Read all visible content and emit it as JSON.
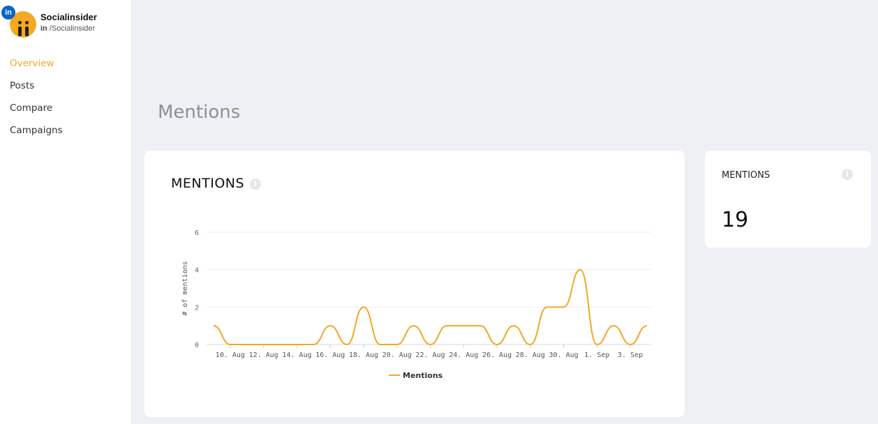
{
  "profile": {
    "name": "Socialinsider",
    "network_badge": "in",
    "handle_prefix": "in",
    "handle": "/Socialinsider"
  },
  "sidebar": {
    "items": [
      {
        "label": "Overview",
        "active": true
      },
      {
        "label": "Posts",
        "active": false
      },
      {
        "label": "Compare",
        "active": false
      },
      {
        "label": "Campaigns",
        "active": false
      }
    ]
  },
  "page": {
    "title": "Mentions"
  },
  "chart_card": {
    "title": "MENTIONS",
    "info_icon": "info-icon"
  },
  "stat_card": {
    "title": "MENTIONS",
    "value": "19",
    "info_icon": "info-icon"
  },
  "colors": {
    "accent": "#f5a623",
    "line": "#f5a623",
    "background": "#eef0f4"
  },
  "chart_data": {
    "type": "line",
    "title": "",
    "xlabel": "",
    "ylabel": "# of mentions",
    "ylim": [
      0,
      6
    ],
    "yticks": [
      0,
      2,
      4,
      6
    ],
    "x_tick_labels": [
      "10. Aug",
      "12. Aug",
      "14. Aug",
      "16. Aug",
      "18. Aug",
      "20. Aug",
      "22. Aug",
      "24. Aug",
      "26. Aug",
      "28. Aug",
      "30. Aug",
      "1. Sep",
      "3. Sep"
    ],
    "x": [
      "9. Aug",
      "10. Aug",
      "11. Aug",
      "12. Aug",
      "13. Aug",
      "14. Aug",
      "15. Aug",
      "16. Aug",
      "17. Aug",
      "18. Aug",
      "19. Aug",
      "20. Aug",
      "21. Aug",
      "22. Aug",
      "23. Aug",
      "24. Aug",
      "25. Aug",
      "26. Aug",
      "27. Aug",
      "28. Aug",
      "29. Aug",
      "30. Aug",
      "31. Aug",
      "1. Sep",
      "2. Sep",
      "3. Sep",
      "4. Sep"
    ],
    "series": [
      {
        "name": "Mentions",
        "values": [
          1,
          0,
          0,
          0,
          0,
          0,
          0,
          1,
          0,
          2,
          0,
          0,
          1,
          0,
          1,
          1,
          1,
          0,
          1,
          0,
          2,
          2,
          4,
          0,
          1,
          0,
          1
        ]
      }
    ],
    "grid": true,
    "legend": "bottom-center"
  }
}
